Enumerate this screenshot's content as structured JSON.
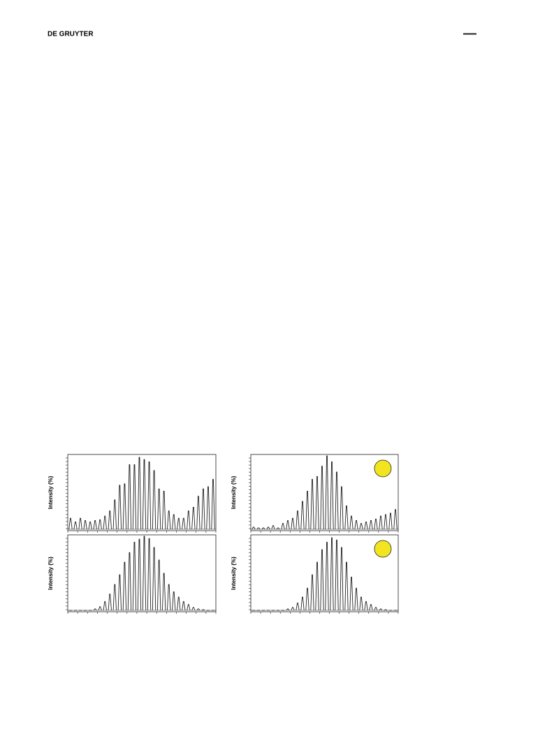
{
  "header": {
    "publisher": "DE GRUYTER"
  },
  "chart_data": [
    {
      "type": "spectrum",
      "ylabel": "Intensity (%)",
      "ylim": [
        0,
        100
      ],
      "color": "#222222",
      "values": [
        15,
        10,
        15,
        12,
        10,
        12,
        13,
        18,
        25,
        40,
        60,
        62,
        88,
        88,
        98,
        95,
        92,
        80,
        55,
        52,
        25,
        20,
        15,
        15,
        25,
        30,
        45,
        55,
        58,
        68
      ]
    },
    {
      "type": "spectrum",
      "ylabel": "Intensity (%)",
      "ylim": [
        0,
        100
      ],
      "color": "#222222",
      "badge_color": "#f2e51f",
      "values": [
        3,
        2,
        2,
        3,
        5,
        2,
        8,
        12,
        15,
        25,
        38,
        52,
        68,
        72,
        86,
        100,
        92,
        78,
        58,
        32,
        18,
        12,
        8,
        10,
        12,
        14,
        18,
        20,
        22,
        27
      ]
    },
    {
      "type": "spectrum",
      "ylabel": "Intensity (%)",
      "ylim": [
        0,
        100
      ],
      "color": "#222222",
      "values": [
        0,
        0,
        0,
        0,
        0,
        2,
        5,
        12,
        22,
        35,
        48,
        65,
        78,
        92,
        96,
        100,
        97,
        85,
        68,
        50,
        35,
        25,
        18,
        12,
        8,
        4,
        2,
        1,
        0,
        0
      ]
    },
    {
      "type": "spectrum",
      "ylabel": "Intensity (%)",
      "ylim": [
        0,
        100
      ],
      "color": "#222222",
      "badge_color": "#f2e51f",
      "values": [
        0,
        0,
        0,
        0,
        0,
        0,
        0,
        2,
        4,
        10,
        18,
        30,
        48,
        65,
        82,
        92,
        98,
        95,
        85,
        65,
        45,
        30,
        18,
        12,
        8,
        4,
        2,
        1,
        0,
        0
      ]
    }
  ]
}
